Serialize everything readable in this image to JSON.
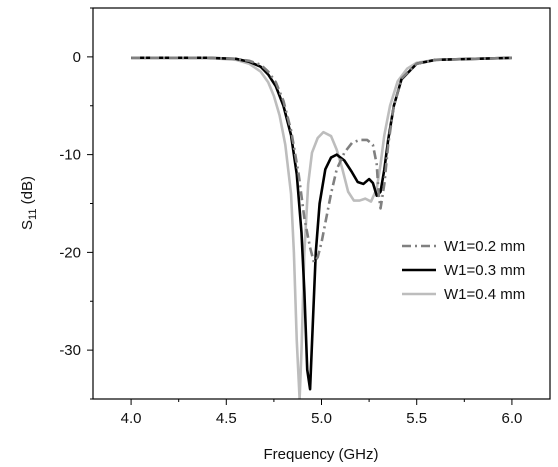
{
  "chart_data": {
    "type": "line",
    "xlabel": "Frequency (GHz)",
    "ylabel": {
      "main": "S",
      "sub": "11",
      "unit": " (dB)"
    },
    "xlim": [
      3.8,
      6.2
    ],
    "ylim": [
      -35,
      5
    ],
    "xticks": [
      4.0,
      4.5,
      5.0,
      5.5,
      6.0
    ],
    "xtick_labels": [
      "4.0",
      "4.5",
      "5.0",
      "5.5",
      "6.0"
    ],
    "yticks": [
      0,
      -10,
      -20,
      -30
    ],
    "ytick_labels": [
      "0",
      "-10",
      "-20",
      "-30"
    ],
    "legend_position": "center-right",
    "series": [
      {
        "name": "W1=0.2 mm",
        "color": "#808080",
        "dash": "dash-dot",
        "x": [
          4.0,
          4.4,
          4.55,
          4.62,
          4.68,
          4.72,
          4.76,
          4.8,
          4.84,
          4.88,
          4.91,
          4.94,
          4.96,
          4.98,
          5.0,
          5.02,
          5.05,
          5.08,
          5.12,
          5.16,
          5.2,
          5.24,
          5.27,
          5.29,
          5.3,
          5.31,
          5.33,
          5.35,
          5.38,
          5.42,
          5.5,
          5.6,
          6.0
        ],
        "y": [
          -0.1,
          -0.1,
          -0.2,
          -0.4,
          -0.8,
          -1.5,
          -2.6,
          -4.5,
          -7.5,
          -12.0,
          -16.5,
          -19.5,
          -21.0,
          -20.5,
          -19.0,
          -17.0,
          -14.0,
          -11.5,
          -9.8,
          -8.8,
          -8.5,
          -8.5,
          -9.0,
          -11.0,
          -14.0,
          -15.5,
          -13.0,
          -9.0,
          -5.0,
          -2.2,
          -0.7,
          -0.3,
          -0.1
        ]
      },
      {
        "name": "W1=0.3 mm",
        "color": "#000000",
        "dash": "solid",
        "x": [
          4.0,
          4.4,
          4.55,
          4.62,
          4.68,
          4.72,
          4.76,
          4.8,
          4.84,
          4.87,
          4.895,
          4.91,
          4.925,
          4.94,
          4.955,
          4.97,
          4.99,
          5.02,
          5.05,
          5.08,
          5.12,
          5.16,
          5.19,
          5.22,
          5.25,
          5.27,
          5.29,
          5.31,
          5.33,
          5.35,
          5.38,
          5.42,
          5.5,
          5.6,
          6.0
        ],
        "y": [
          -0.1,
          -0.1,
          -0.2,
          -0.5,
          -1.0,
          -1.8,
          -3.0,
          -5.0,
          -8.0,
          -12.0,
          -18.0,
          -24.0,
          -32.0,
          -34.0,
          -27.0,
          -20.0,
          -15.0,
          -11.5,
          -10.3,
          -10.0,
          -10.6,
          -11.8,
          -12.8,
          -13.0,
          -12.5,
          -12.9,
          -14.2,
          -13.8,
          -11.5,
          -8.5,
          -5.0,
          -2.3,
          -0.7,
          -0.3,
          -0.1
        ]
      },
      {
        "name": "W1=0.4 mm",
        "color": "#bdbdbd",
        "dash": "solid",
        "x": [
          4.0,
          4.4,
          4.55,
          4.62,
          4.68,
          4.72,
          4.75,
          4.78,
          4.81,
          4.84,
          4.855,
          4.87,
          4.885,
          4.895,
          4.91,
          4.93,
          4.95,
          4.98,
          5.01,
          5.05,
          5.08,
          5.11,
          5.14,
          5.17,
          5.2,
          5.23,
          5.26,
          5.29,
          5.31,
          5.33,
          5.36,
          5.4,
          5.45,
          5.5,
          5.6,
          6.0
        ],
        "y": [
          -0.1,
          -0.1,
          -0.3,
          -0.7,
          -1.5,
          -2.6,
          -4.0,
          -6.0,
          -9.0,
          -14.0,
          -20.0,
          -29.0,
          -35.0,
          -30.0,
          -20.0,
          -13.0,
          -9.8,
          -8.3,
          -7.7,
          -8.1,
          -9.5,
          -11.5,
          -13.8,
          -14.7,
          -14.7,
          -14.5,
          -14.8,
          -13.5,
          -11.0,
          -8.0,
          -5.0,
          -2.5,
          -1.2,
          -0.6,
          -0.3,
          -0.1
        ]
      }
    ]
  }
}
